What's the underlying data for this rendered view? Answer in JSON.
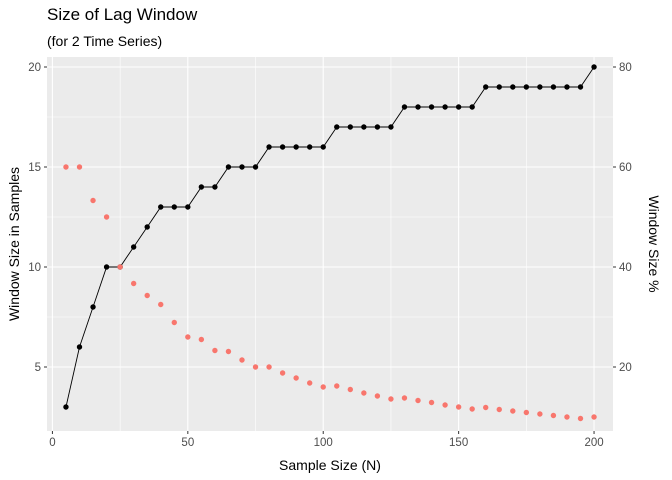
{
  "chart_data": {
    "type": "scatter",
    "title": "Size of Lag Window",
    "subtitle": "(for 2 Time Series)",
    "xlabel": "Sample Size (N)",
    "ylabel": "Window Size in Samples",
    "y2label": "Window Size %",
    "xlim": [
      -2,
      207
    ],
    "ylim": [
      1.8,
      20.5
    ],
    "y2lim": [
      7.2,
      82
    ],
    "x_ticks": [
      0,
      50,
      100,
      150,
      200
    ],
    "y_ticks": [
      5,
      10,
      15,
      20
    ],
    "y2_ticks": [
      20,
      40,
      60,
      80
    ],
    "grid": true,
    "background": "#ebebeb",
    "series": [
      {
        "axis": "left",
        "style": "line+points",
        "color": "#000000",
        "x": [
          5,
          10,
          15,
          20,
          25,
          30,
          35,
          40,
          45,
          50,
          55,
          60,
          65,
          70,
          75,
          80,
          85,
          90,
          95,
          100,
          105,
          110,
          115,
          120,
          125,
          130,
          135,
          140,
          145,
          150,
          155,
          160,
          165,
          170,
          175,
          180,
          185,
          190,
          195,
          200
        ],
        "values": [
          3,
          6,
          8,
          10,
          10,
          11,
          12,
          13,
          13,
          13,
          14,
          14,
          15,
          15,
          15,
          16,
          16,
          16,
          16,
          16,
          17,
          17,
          17,
          17,
          17,
          18,
          18,
          18,
          18,
          18,
          18,
          19,
          19,
          19,
          19,
          19,
          19,
          19,
          19,
          20
        ]
      },
      {
        "axis": "right",
        "style": "points",
        "color": "#f8766d",
        "x": [
          5,
          10,
          15,
          20,
          25,
          30,
          35,
          40,
          45,
          50,
          55,
          60,
          65,
          70,
          75,
          80,
          85,
          90,
          95,
          100,
          105,
          110,
          115,
          120,
          125,
          130,
          135,
          140,
          145,
          150,
          155,
          160,
          165,
          170,
          175,
          180,
          185,
          190,
          195,
          200
        ],
        "values": [
          60,
          60,
          53.3,
          50,
          40,
          36.7,
          34.3,
          32.5,
          28.9,
          26,
          25.5,
          23.3,
          23.1,
          21.4,
          20,
          20,
          18.8,
          17.8,
          16.8,
          16,
          16.2,
          15.5,
          14.8,
          14.2,
          13.6,
          13.8,
          13.3,
          12.9,
          12.4,
          12,
          11.6,
          11.9,
          11.5,
          11.2,
          10.9,
          10.6,
          10.3,
          10,
          9.7,
          10
        ]
      }
    ]
  }
}
